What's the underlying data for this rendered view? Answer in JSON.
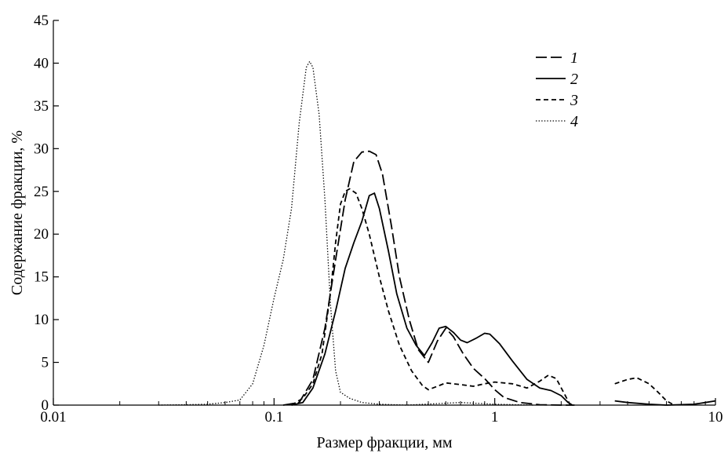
{
  "chart_data": {
    "type": "line",
    "title": "",
    "xlabel": "Размер фракции, мм",
    "ylabel": "Содержание фракции, %",
    "xscale": "log",
    "xlim": [
      0.01,
      10
    ],
    "ylim": [
      0,
      45
    ],
    "xticks": [
      {
        "value": 0.01,
        "label": "0.01"
      },
      {
        "value": 0.1,
        "label": "0.1"
      },
      {
        "value": 1,
        "label": "1"
      },
      {
        "value": 10,
        "label": "10"
      }
    ],
    "yticks": [
      0,
      5,
      10,
      15,
      20,
      25,
      30,
      35,
      40,
      45
    ],
    "legend_position": "top-right",
    "grid": false,
    "series": [
      {
        "name": "1",
        "line_style": "long-dash",
        "segments": [
          [
            [
              0.11,
              0
            ],
            [
              0.13,
              0.3
            ],
            [
              0.15,
              3
            ],
            [
              0.17,
              9
            ],
            [
              0.19,
              17
            ],
            [
              0.21,
              24
            ],
            [
              0.23,
              28.5
            ],
            [
              0.25,
              29.6
            ],
            [
              0.27,
              29.7
            ],
            [
              0.29,
              29.3
            ],
            [
              0.31,
              27
            ],
            [
              0.34,
              21
            ],
            [
              0.37,
              15
            ],
            [
              0.41,
              10
            ],
            [
              0.45,
              6.5
            ],
            [
              0.5,
              5
            ],
            [
              0.55,
              7.5
            ],
            [
              0.6,
              9
            ],
            [
              0.65,
              8
            ],
            [
              0.72,
              6
            ],
            [
              0.8,
              4.3
            ],
            [
              0.9,
              3.1
            ],
            [
              1.0,
              1.8
            ],
            [
              1.1,
              0.9
            ],
            [
              1.3,
              0.3
            ],
            [
              1.6,
              0.05
            ],
            [
              2.0,
              0
            ],
            [
              2.3,
              0
            ]
          ]
        ]
      },
      {
        "name": "2",
        "line_style": "solid",
        "segments": [
          [
            [
              0.12,
              0
            ],
            [
              0.135,
              0.3
            ],
            [
              0.15,
              2
            ],
            [
              0.17,
              6
            ],
            [
              0.19,
              11
            ],
            [
              0.21,
              16
            ],
            [
              0.23,
              19
            ],
            [
              0.25,
              21.5
            ],
            [
              0.27,
              24.5
            ],
            [
              0.285,
              24.8
            ],
            [
              0.3,
              23
            ],
            [
              0.33,
              18
            ],
            [
              0.36,
              13
            ],
            [
              0.4,
              9
            ],
            [
              0.44,
              7
            ],
            [
              0.48,
              5.8
            ],
            [
              0.52,
              7.3
            ],
            [
              0.56,
              9
            ],
            [
              0.6,
              9.2
            ],
            [
              0.65,
              8.5
            ],
            [
              0.7,
              7.6
            ],
            [
              0.75,
              7.3
            ],
            [
              0.82,
              7.8
            ],
            [
              0.9,
              8.4
            ],
            [
              0.95,
              8.3
            ],
            [
              1.05,
              7.2
            ],
            [
              1.2,
              5.2
            ],
            [
              1.4,
              3
            ],
            [
              1.6,
              2
            ],
            [
              1.8,
              1.7
            ],
            [
              2.0,
              1.1
            ],
            [
              2.15,
              0.3
            ],
            [
              2.25,
              0
            ]
          ],
          [
            [
              3.5,
              0.5
            ],
            [
              4.0,
              0.3
            ],
            [
              5.0,
              0.1
            ],
            [
              6.0,
              0
            ],
            [
              8.0,
              0.1
            ],
            [
              9.0,
              0.3
            ],
            [
              10.0,
              0.5
            ]
          ]
        ]
      },
      {
        "name": "3",
        "line_style": "short-dash",
        "segments": [
          [
            [
              0.12,
              0
            ],
            [
              0.135,
              0.8
            ],
            [
              0.15,
              2.5
            ],
            [
              0.165,
              6
            ],
            [
              0.18,
              13
            ],
            [
              0.19,
              19
            ],
            [
              0.2,
              23.5
            ],
            [
              0.21,
              25
            ],
            [
              0.22,
              25.3
            ],
            [
              0.235,
              24.8
            ],
            [
              0.25,
              23
            ],
            [
              0.27,
              20
            ],
            [
              0.3,
              15
            ],
            [
              0.33,
              11
            ],
            [
              0.37,
              7
            ],
            [
              0.42,
              4
            ],
            [
              0.47,
              2.3
            ],
            [
              0.5,
              1.8
            ],
            [
              0.55,
              2.2
            ],
            [
              0.6,
              2.6
            ],
            [
              0.7,
              2.4
            ],
            [
              0.8,
              2.2
            ],
            [
              0.9,
              2.5
            ],
            [
              1.0,
              2.7
            ],
            [
              1.2,
              2.5
            ],
            [
              1.4,
              2
            ],
            [
              1.6,
              2.8
            ],
            [
              1.75,
              3.5
            ],
            [
              1.9,
              3.1
            ],
            [
              2.05,
              1.5
            ],
            [
              2.2,
              0
            ]
          ],
          [
            [
              3.5,
              2.5
            ],
            [
              4.0,
              3.0
            ],
            [
              4.4,
              3.2
            ],
            [
              5.0,
              2.5
            ],
            [
              5.5,
              1.5
            ],
            [
              6.0,
              0.5
            ],
            [
              6.5,
              0
            ]
          ]
        ]
      },
      {
        "name": "4",
        "line_style": "dotted",
        "segments": [
          [
            [
              0.03,
              0
            ],
            [
              0.04,
              0.05
            ],
            [
              0.05,
              0.1
            ],
            [
              0.06,
              0.3
            ],
            [
              0.07,
              0.6
            ],
            [
              0.08,
              2.5
            ],
            [
              0.09,
              7
            ],
            [
              0.1,
              12.5
            ],
            [
              0.11,
              17
            ],
            [
              0.12,
              23
            ],
            [
              0.13,
              33
            ],
            [
              0.14,
              39.5
            ],
            [
              0.145,
              40.2
            ],
            [
              0.15,
              39.5
            ],
            [
              0.16,
              34
            ],
            [
              0.17,
              24
            ],
            [
              0.18,
              12
            ],
            [
              0.19,
              4
            ],
            [
              0.2,
              1.5
            ],
            [
              0.22,
              0.8
            ],
            [
              0.25,
              0.3
            ],
            [
              0.3,
              0.1
            ],
            [
              0.4,
              0
            ],
            [
              0.7,
              0.3
            ],
            [
              1.0,
              0.1
            ],
            [
              1.5,
              0
            ]
          ]
        ]
      }
    ]
  }
}
